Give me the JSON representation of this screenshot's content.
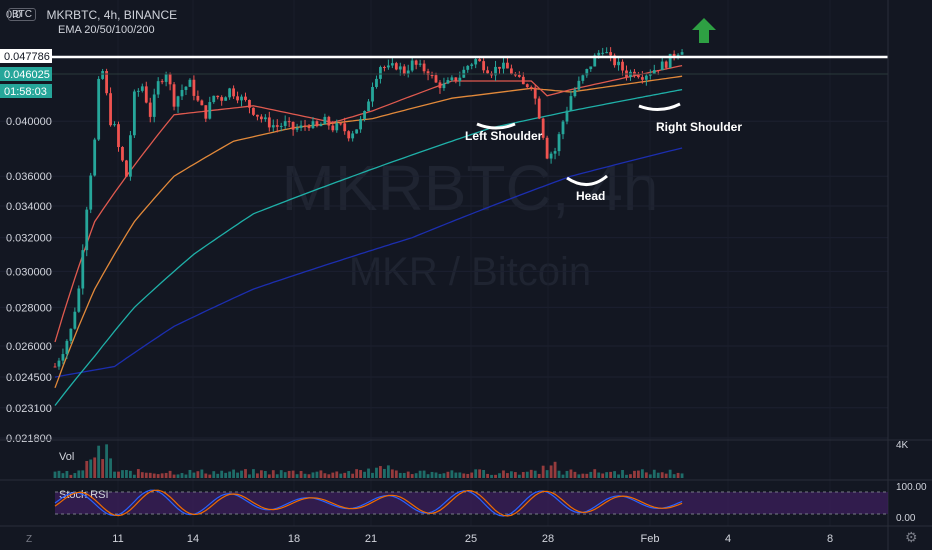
{
  "header": {
    "badge": "BTC",
    "title": "MKRBTC, 4h, BINANCE",
    "indicator": "EMA 20/50/100/200"
  },
  "watermark": {
    "symbol": "MKRBTC, 4h",
    "name": "MKR / Bitcoin"
  },
  "price_labels": {
    "last": "0.047786",
    "current": "0.046025",
    "countdown": "01:58:03",
    "top_cut": "0.0"
  },
  "panels": {
    "volume": {
      "label": "Vol",
      "axis_label": "4K"
    },
    "stoch": {
      "label": "Stoch RSI",
      "top": "100.00",
      "bottom": "0.00"
    }
  },
  "annotations": {
    "left_shoulder": "Left Shoulder",
    "head": "Head",
    "right_shoulder": "Right Shoulder"
  },
  "footer": {
    "corner": "Z",
    "settings": "⚙"
  },
  "colors": {
    "background": "#131722",
    "up": "#26a69a",
    "down": "#ef5350",
    "ema20": "#e05a4f",
    "ema50": "#e2893a",
    "ema100": "#1fb0a8",
    "ema200": "#1c2eaf",
    "arrow": "#2ea043",
    "stoch_k": "#2962ff",
    "stoch_d": "#ef6c00",
    "stoch_band": "#3c1f5c"
  },
  "chart_data": {
    "type": "candlestick",
    "title": "MKRBTC, 4h, BINANCE",
    "y_ticks": [
      "0.040000",
      "0.036000",
      "0.034000",
      "0.032000",
      "0.030000",
      "0.028000",
      "0.026000",
      "0.024500",
      "0.023100",
      "0.021800"
    ],
    "x_ticks": [
      "11",
      "14",
      "18",
      "21",
      "25",
      "28",
      "Feb",
      "4",
      "8"
    ],
    "ylim": [
      0.0218,
      0.0495
    ],
    "y_scale": "log",
    "horizontal_lines": [
      0.047786,
      0.046025
    ],
    "close_path": [
      [
        0,
        0.025
      ],
      [
        2,
        0.0258
      ],
      [
        4,
        0.0268
      ],
      [
        6,
        0.029
      ],
      [
        8,
        0.034
      ],
      [
        10,
        0.0385
      ],
      [
        11,
        0.043
      ],
      [
        12,
        0.044
      ],
      [
        13,
        0.042
      ],
      [
        14,
        0.04
      ],
      [
        15,
        0.0395
      ],
      [
        16,
        0.038
      ],
      [
        17,
        0.037
      ],
      [
        18,
        0.036
      ],
      [
        19,
        0.039
      ],
      [
        20,
        0.042
      ],
      [
        22,
        0.0428
      ],
      [
        24,
        0.0405
      ],
      [
        26,
        0.043
      ],
      [
        28,
        0.044
      ],
      [
        30,
        0.0415
      ],
      [
        32,
        0.0425
      ],
      [
        34,
        0.043
      ],
      [
        36,
        0.0415
      ],
      [
        38,
        0.0405
      ],
      [
        40,
        0.042
      ],
      [
        42,
        0.0418
      ],
      [
        44,
        0.0425
      ],
      [
        46,
        0.042
      ],
      [
        48,
        0.0415
      ],
      [
        50,
        0.0408
      ],
      [
        52,
        0.0402
      ],
      [
        54,
        0.0398
      ],
      [
        56,
        0.0396
      ],
      [
        58,
        0.0398
      ],
      [
        60,
        0.0394
      ],
      [
        62,
        0.0395
      ],
      [
        64,
        0.0398
      ],
      [
        66,
        0.0395
      ],
      [
        68,
        0.04
      ],
      [
        70,
        0.0395
      ],
      [
        72,
        0.0396
      ],
      [
        74,
        0.039
      ],
      [
        76,
        0.0395
      ],
      [
        78,
        0.0405
      ],
      [
        80,
        0.043
      ],
      [
        82,
        0.0445
      ],
      [
        84,
        0.0442
      ],
      [
        86,
        0.0445
      ],
      [
        88,
        0.044
      ],
      [
        90,
        0.0447
      ],
      [
        92,
        0.0443
      ],
      [
        94,
        0.044
      ],
      [
        96,
        0.043
      ],
      [
        98,
        0.0428
      ],
      [
        100,
        0.0432
      ],
      [
        102,
        0.0436
      ],
      [
        104,
        0.0445
      ],
      [
        106,
        0.045
      ],
      [
        108,
        0.0445
      ],
      [
        110,
        0.044
      ],
      [
        112,
        0.0445
      ],
      [
        114,
        0.0442
      ],
      [
        116,
        0.0436
      ],
      [
        118,
        0.0428
      ],
      [
        120,
        0.043
      ],
      [
        122,
        0.0405
      ],
      [
        124,
        0.0375
      ],
      [
        126,
        0.0378
      ],
      [
        128,
        0.04
      ],
      [
        130,
        0.042
      ],
      [
        132,
        0.043
      ],
      [
        134,
        0.044
      ],
      [
        136,
        0.0452
      ],
      [
        138,
        0.046
      ],
      [
        140,
        0.045
      ],
      [
        142,
        0.0445
      ],
      [
        144,
        0.0438
      ],
      [
        146,
        0.044
      ],
      [
        148,
        0.0437
      ],
      [
        150,
        0.044
      ],
      [
        152,
        0.0444
      ],
      [
        154,
        0.0447
      ],
      [
        156,
        0.0455
      ],
      [
        158,
        0.046
      ]
    ],
    "ema_paths": {
      "ema20": [
        [
          0,
          0.0262
        ],
        [
          10,
          0.033
        ],
        [
          18,
          0.036
        ],
        [
          30,
          0.0405
        ],
        [
          50,
          0.0412
        ],
        [
          70,
          0.0399
        ],
        [
          80,
          0.0408
        ],
        [
          100,
          0.0432
        ],
        [
          120,
          0.0432
        ],
        [
          124,
          0.042
        ],
        [
          130,
          0.0425
        ],
        [
          158,
          0.0445
        ]
      ],
      "ema50": [
        [
          0,
          0.024
        ],
        [
          10,
          0.029
        ],
        [
          20,
          0.033
        ],
        [
          30,
          0.036
        ],
        [
          45,
          0.0385
        ],
        [
          60,
          0.0395
        ],
        [
          80,
          0.0402
        ],
        [
          100,
          0.0418
        ],
        [
          120,
          0.0426
        ],
        [
          130,
          0.0423
        ],
        [
          158,
          0.0436
        ]
      ],
      "ema100": [
        [
          0,
          0.0232
        ],
        [
          10,
          0.0255
        ],
        [
          20,
          0.028
        ],
        [
          35,
          0.031
        ],
        [
          50,
          0.0335
        ],
        [
          70,
          0.0355
        ],
        [
          90,
          0.0375
        ],
        [
          110,
          0.0395
        ],
        [
          130,
          0.0408
        ],
        [
          158,
          0.0425
        ]
      ],
      "ema200": [
        [
          0,
          0.0245
        ],
        [
          15,
          0.025
        ],
        [
          30,
          0.027
        ],
        [
          50,
          0.029
        ],
        [
          70,
          0.0305
        ],
        [
          90,
          0.032
        ],
        [
          110,
          0.034
        ],
        [
          130,
          0.036
        ],
        [
          158,
          0.038
        ]
      ]
    }
  }
}
